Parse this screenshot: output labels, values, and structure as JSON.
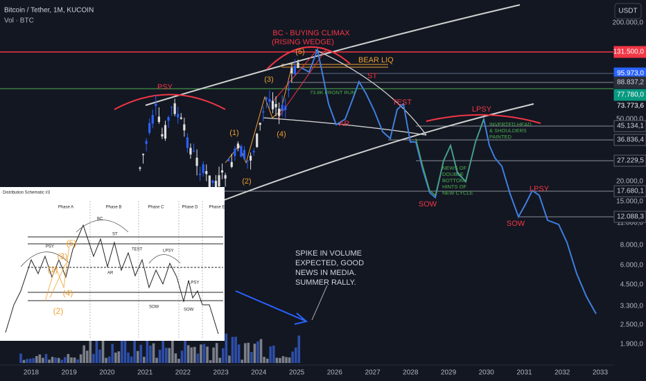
{
  "header": {
    "symbol": "Bitcoin / Tether, 1M, KUCOIN",
    "volume": "Vol · BTC",
    "currency_button": "USDT"
  },
  "price_axis": [
    "200.000,0",
    "50.000,0",
    "20.000,0",
    "15.000,0",
    "11.000,0",
    "8.000,0",
    "6.000,0",
    "4.500,0",
    "3.300,0",
    "2.500,0",
    "1.900,0"
  ],
  "price_tags": [
    "131.500,0",
    "95.973,0",
    "88.837,2",
    "77.780,0",
    "73.773,6",
    "45.134,1",
    "36.836,4",
    "27.229,5",
    "17.680,1",
    "12.088,3"
  ],
  "time_axis": [
    "2018",
    "2019",
    "2020",
    "2021",
    "2022",
    "2023",
    "2024",
    "2025",
    "2026",
    "2027",
    "2028",
    "2029",
    "2030",
    "2031",
    "2032",
    "2033"
  ],
  "annotations": {
    "bc": [
      "BC - BUYING CLIMAX",
      "(RISING WEDGE)"
    ],
    "wave5": "(5)",
    "bear_liq": "BEAR LIQ",
    "st": "ST",
    "wave3": "(3)",
    "front_run": "73.8K FRONT RUN",
    "psy": "PSY",
    "wave1": "(1)",
    "wave4": "(4)",
    "ar": "AR",
    "wave2": "(2)",
    "test": "TEST",
    "lpsy1": "LPSY",
    "inverted": [
      "INVERTED HEAD",
      "& SHOULDERS",
      "PAINTED"
    ],
    "news": [
      "NEWS OF",
      "DOUBLE",
      "BOTTOM,",
      "HINTS OF",
      "NEW CYCLE"
    ],
    "sow1": "SOW",
    "sow2": "SOW",
    "lpsy2": "LPSY",
    "spike": [
      "SPIKE IN VOLUME",
      "EXPECTED, GOOD",
      "NEWS IN MEDIA.",
      "SUMMER RALLY."
    ]
  },
  "inset": {
    "title": "Distribution Schematic #3",
    "phases": [
      "Phase A",
      "Phase B",
      "Phase C",
      "Phase D",
      "Phase E"
    ],
    "labels": {
      "psy": "PSY",
      "bc": "BC",
      "st": "ST",
      "ar": "AR",
      "test": "TEST",
      "lpsy1": "LPSY",
      "lpsy2": "LPSY",
      "sow1": "SOW",
      "sow2": "SOW"
    },
    "waves": [
      "(1)",
      "(2)",
      "(3)",
      "(4)",
      "(5)"
    ]
  }
}
